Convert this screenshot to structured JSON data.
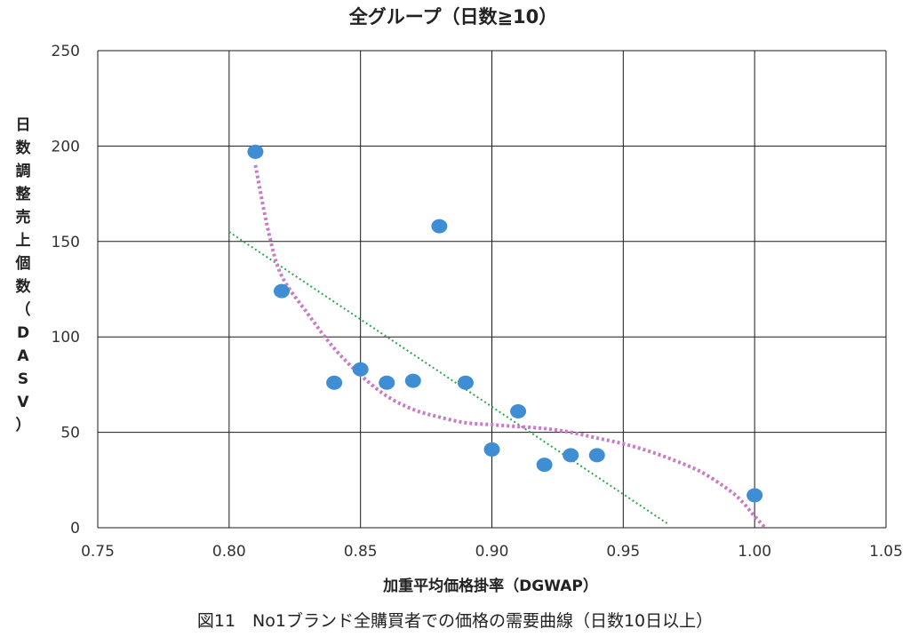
{
  "chart_data": {
    "type": "scatter",
    "title": "全グループ（日数≧10）",
    "xlabel": "加重平均価格掛率（DGWAP）",
    "ylabel": "日数調整売上個数（DASV）",
    "caption": "図11　No1ブランド全購買者での価格の需要曲線（日数10日以上）",
    "xlim": [
      0.75,
      1.05
    ],
    "ylim": [
      0,
      250
    ],
    "x_ticks": [
      "0.75",
      "0.80",
      "0.85",
      "0.90",
      "0.95",
      "1.00",
      "1.05"
    ],
    "y_ticks": [
      "0",
      "50",
      "100",
      "150",
      "200",
      "250"
    ],
    "grid": true,
    "legend": "none",
    "points": [
      {
        "x": 0.81,
        "y": 197
      },
      {
        "x": 0.82,
        "y": 124
      },
      {
        "x": 0.84,
        "y": 76
      },
      {
        "x": 0.85,
        "y": 83
      },
      {
        "x": 0.86,
        "y": 76
      },
      {
        "x": 0.87,
        "y": 77
      },
      {
        "x": 0.88,
        "y": 158
      },
      {
        "x": 0.89,
        "y": 76
      },
      {
        "x": 0.9,
        "y": 41
      },
      {
        "x": 0.91,
        "y": 61
      },
      {
        "x": 0.92,
        "y": 33
      },
      {
        "x": 0.93,
        "y": 38
      },
      {
        "x": 0.94,
        "y": 38
      },
      {
        "x": 1.0,
        "y": 17
      }
    ],
    "linear_trend": {
      "x": [
        0.8,
        0.967
      ],
      "y": [
        155,
        2
      ]
    },
    "poly_trend": {
      "x": [
        0.81,
        0.815,
        0.82,
        0.83,
        0.84,
        0.85,
        0.86,
        0.87,
        0.88,
        0.89,
        0.9,
        0.91,
        0.92,
        0.93,
        0.94,
        0.95,
        0.96,
        0.97,
        0.98,
        0.99,
        0.995,
        1.0,
        1.004
      ],
      "y": [
        190,
        155,
        132,
        112,
        94,
        80,
        69,
        62,
        58,
        55,
        54,
        53,
        52,
        50,
        47,
        44,
        40,
        35,
        29,
        20,
        14,
        6,
        0
      ]
    },
    "colors": {
      "points": "#3f8ed4",
      "linear_trend": "#2aa84a",
      "poly_trend": "#c97bc4",
      "grid": "#1a1a1a"
    }
  }
}
